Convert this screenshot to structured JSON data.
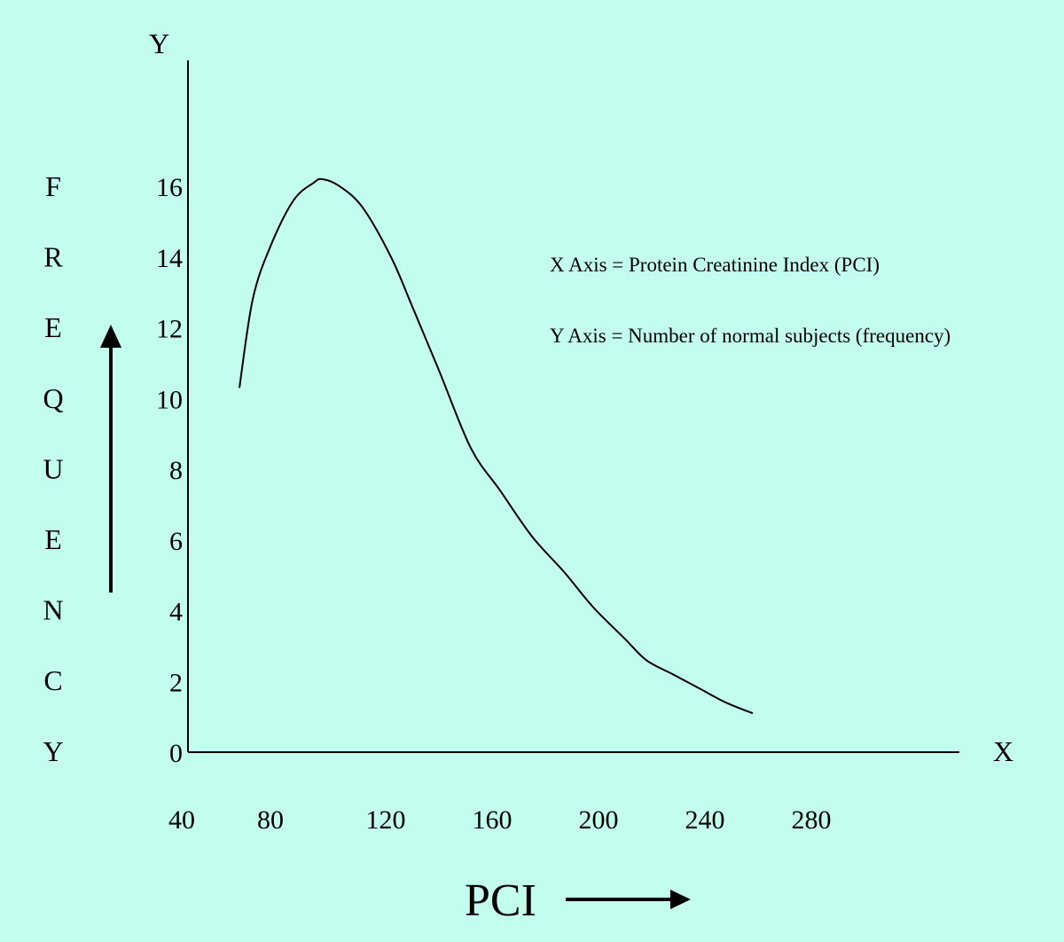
{
  "chart_data": {
    "type": "line",
    "title": "",
    "xlabel": "PCI",
    "ylabel_letters": [
      "F",
      "R",
      "E",
      "Q",
      "U",
      "E",
      "N",
      "C",
      "Y"
    ],
    "x_axis_letter": "X",
    "y_axis_letter": "Y",
    "x_ticks": [
      "40",
      "80",
      "120",
      "160",
      "200",
      "240",
      "280"
    ],
    "y_ticks": [
      "0",
      "2",
      "4",
      "6",
      "8",
      "10",
      "12",
      "14",
      "16"
    ],
    "ylim": [
      0,
      16
    ],
    "grid": false,
    "annotations": [
      "X Axis = Protein Creatinine Index (PCI)",
      "Y Axis = Number of normal subjects (frequency)"
    ],
    "series": [
      {
        "name": "Frequency",
        "x": [
          66,
          72,
          80,
          88,
          95,
          98,
          104,
          112,
          122,
          130,
          140,
          152,
          163,
          175,
          187,
          198,
          210,
          218,
          228,
          238,
          248,
          258
        ],
        "y": [
          10.3,
          12.8,
          14.3,
          15.6,
          16.1,
          16.2,
          16.0,
          15.4,
          14.0,
          12.6,
          10.8,
          8.6,
          7.4,
          6.1,
          5.1,
          4.1,
          3.2,
          2.6,
          2.2,
          1.8,
          1.4,
          1.1
        ]
      }
    ],
    "line_color": "#000000"
  }
}
